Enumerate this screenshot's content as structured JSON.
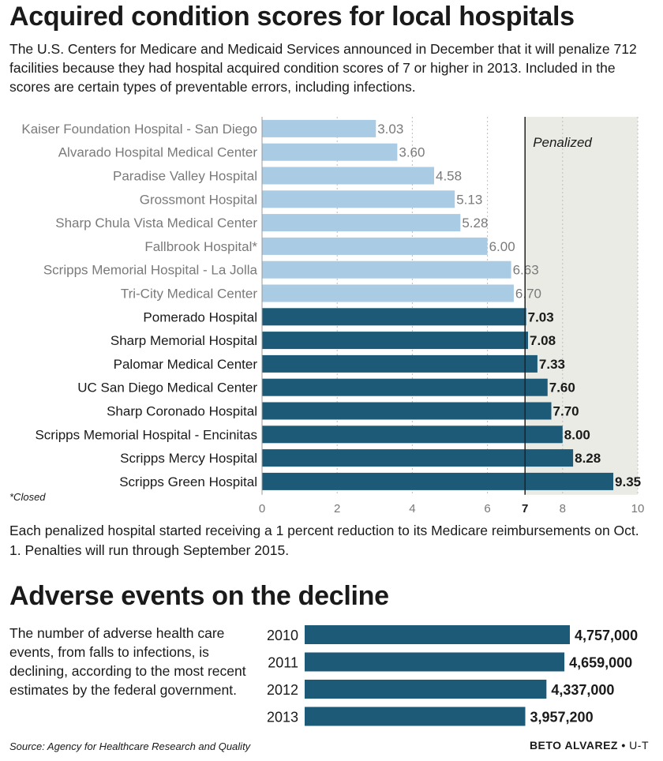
{
  "title": "Acquired condition scores for local hospitals",
  "intro": "The U.S. Centers for Medicare and Medicaid Services announced in December that it will penalize 712 facilities because they had hospital acquired condition scores of 7 or higher in 2013. Included in the scores are certain types of preventable errors, including infections.",
  "closed_note": "*Closed",
  "note": "Each penalized hospital started receiving a 1 percent reduction to its Medicare reimbursements on Oct. 1. Penalties will run through September 2015.",
  "title2": "Adverse events on the decline",
  "desc2": "The number of adverse health care events, from falls to infections, is declining, according to the most recent estimates by the federal government.",
  "source": "Source: Agency for Healthcare Research and Quality",
  "credit": {
    "name": "BETO ALVAREZ",
    "sep": " • ",
    "org": "U-T"
  },
  "colors": {
    "light_bar": "#a9cbe3",
    "dark_bar": "#1c5a78",
    "penalized_zone": "#ebebe6",
    "light_label": "#7a7a7a",
    "dark_label": "#1a1a1a"
  },
  "chart_data": [
    {
      "type": "bar",
      "orientation": "horizontal",
      "categories": [
        "Kaiser Foundation Hospital - San Diego",
        "Alvarado Hospital Medical Center",
        "Paradise Valley Hospital",
        "Grossmont Hospital",
        "Sharp Chula Vista Medical Center",
        "Fallbrook Hospital*",
        "Scripps Memorial Hospital - La Jolla",
        "Tri-City Medical Center",
        "Pomerado Hospital",
        "Sharp Memorial Hospital",
        "Palomar Medical Center",
        "UC San Diego Medical Center",
        "Sharp Coronado Hospital",
        "Scripps Memorial Hospital - Encinitas",
        "Scripps Mercy Hospital",
        "Scripps Green Hospital"
      ],
      "values": [
        3.03,
        3.6,
        4.58,
        5.13,
        5.28,
        6.0,
        6.63,
        6.7,
        7.03,
        7.08,
        7.33,
        7.6,
        7.7,
        8.0,
        8.28,
        9.35
      ],
      "value_labels": [
        "3.03",
        "3.60",
        "4.58",
        "5.13",
        "5.28",
        "6.00",
        "6.63",
        "6.70",
        "7.03",
        "7.08",
        "7.33",
        "7.60",
        "7.70",
        "8.00",
        "8.28",
        "9.35"
      ],
      "xlim": [
        0,
        10
      ],
      "xticks": [
        0,
        2,
        4,
        6,
        7,
        8,
        10
      ],
      "xtick_labels": [
        "0",
        "2",
        "4",
        "6",
        "7",
        "8",
        "10"
      ],
      "threshold": 7,
      "threshold_label": "Penalized",
      "grid": true
    },
    {
      "type": "bar",
      "orientation": "horizontal",
      "categories": [
        "2010",
        "2011",
        "2012",
        "2013"
      ],
      "values": [
        4757000,
        4659000,
        4337000,
        3957200
      ],
      "value_labels": [
        "4,757,000",
        "4,659,000",
        "4,337,000",
        "3,957,200"
      ],
      "xlim": [
        0,
        4757000
      ]
    }
  ]
}
